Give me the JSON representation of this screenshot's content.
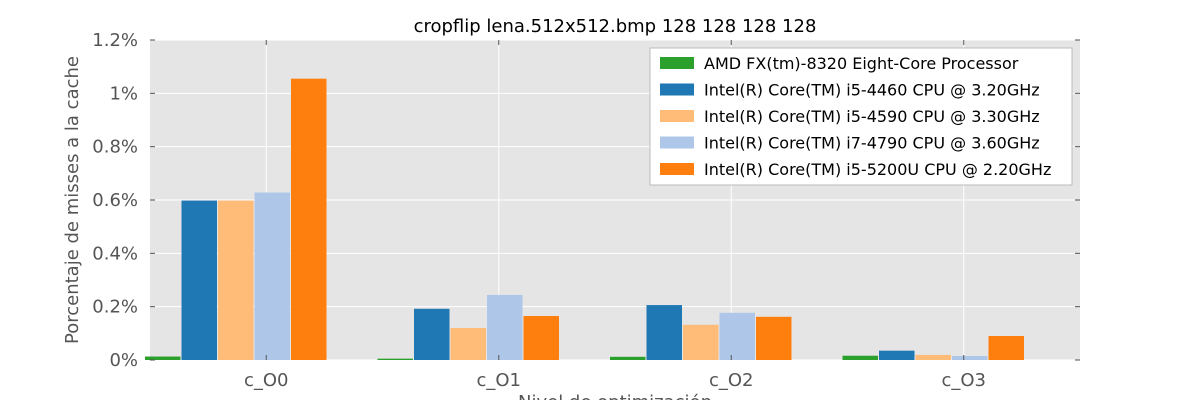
{
  "chart_data": {
    "type": "bar",
    "title": "cropflip lena.512x512.bmp 128 128 128 128",
    "xlabel": "Nivel de optimización",
    "ylabel": "Porcentaje de misses a la cache",
    "categories": [
      "c_O0",
      "c_O1",
      "c_O2",
      "c_O3"
    ],
    "yticks": [
      "0%",
      "0.2%",
      "0.4%",
      "0.6%",
      "0.8%",
      "1%",
      "1.2%"
    ],
    "ylim": [
      0,
      1.2
    ],
    "grid": true,
    "legend_position": "top-right",
    "series": [
      {
        "name": "AMD FX(tm)-8320 Eight-Core Processor",
        "color": "#2ca02c",
        "values": [
          0.013,
          0.005,
          0.012,
          0.016
        ]
      },
      {
        "name": "Intel(R) Core(TM) i5-4460  CPU @ 3.20GHz",
        "color": "#1f77b4",
        "values": [
          0.598,
          0.192,
          0.206,
          0.035
        ]
      },
      {
        "name": "Intel(R) Core(TM) i5-4590 CPU @ 3.30GHz",
        "color": "#ffbb78",
        "values": [
          0.598,
          0.12,
          0.132,
          0.019
        ]
      },
      {
        "name": "Intel(R) Core(TM) i7-4790 CPU @ 3.60GHz",
        "color": "#aec7e8",
        "values": [
          0.628,
          0.244,
          0.177,
          0.015
        ]
      },
      {
        "name": "Intel(R) Core(TM) i5-5200U CPU @ 2.20GHz",
        "color": "#ff7f0e",
        "values": [
          1.055,
          0.165,
          0.162,
          0.09
        ]
      }
    ]
  }
}
